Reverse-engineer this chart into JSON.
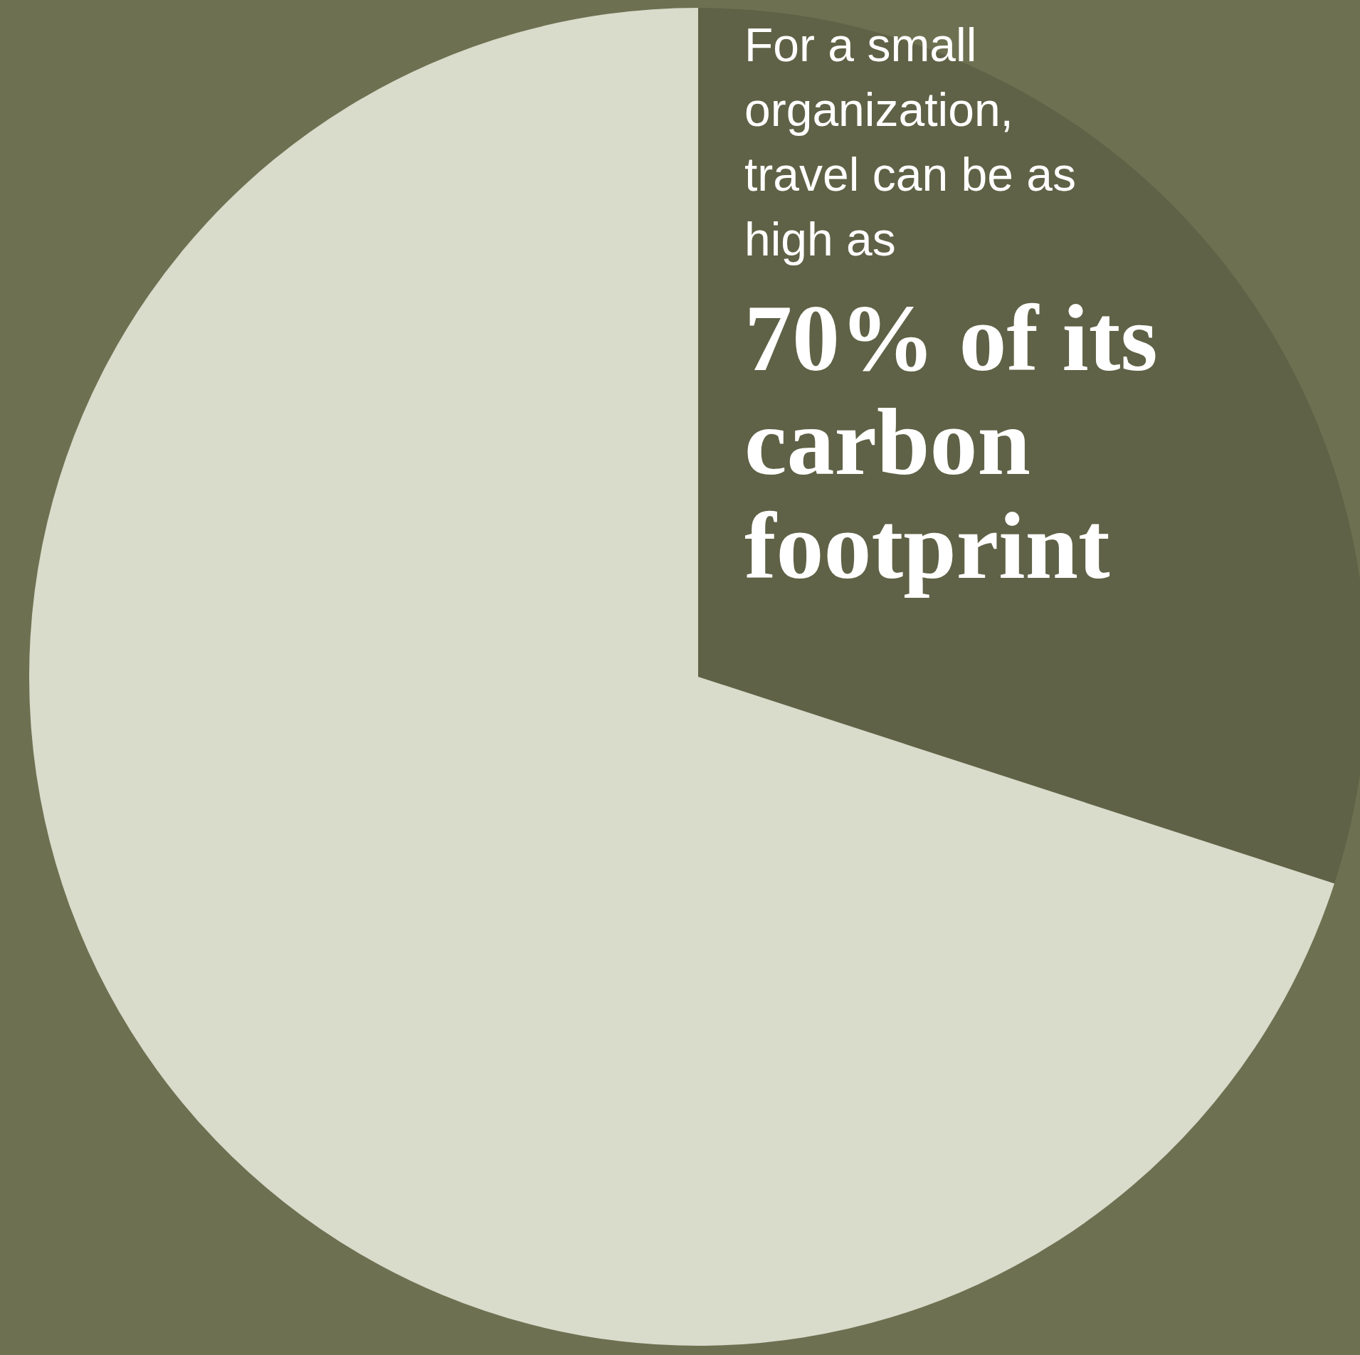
{
  "chart_data": {
    "type": "pie",
    "categories": [
      null,
      null
    ],
    "values": [
      30,
      70
    ],
    "colors": [
      "#5f6246",
      "#d9dbcb"
    ],
    "annotations": [
      "For a small organization, travel can be as high as",
      "70% of its carbon footprint"
    ],
    "legend": false
  }
}
